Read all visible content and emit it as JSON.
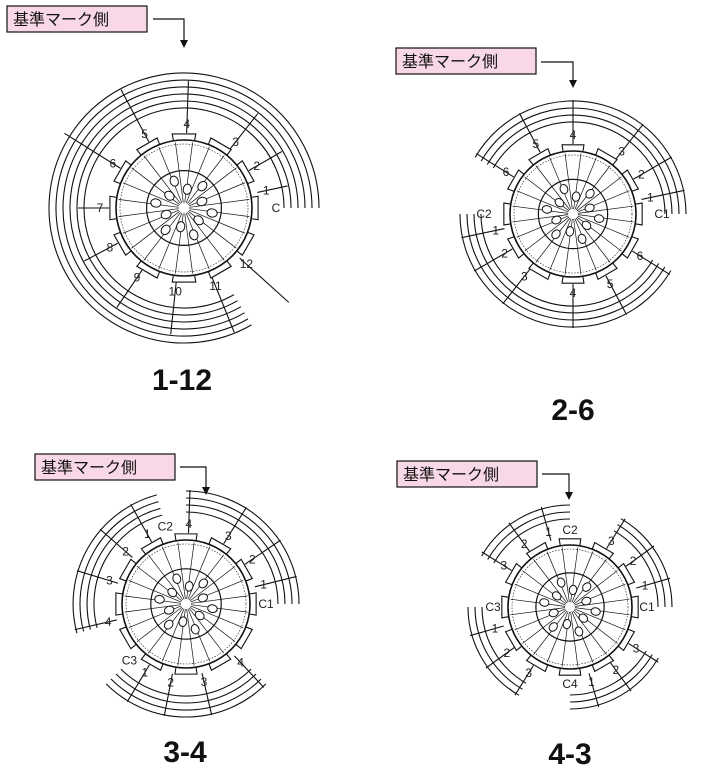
{
  "reference_label": "基準マーク側",
  "colors": {
    "reference_fill": "#f8d7e6",
    "line": "#111111"
  },
  "diagrams": [
    {
      "id": "d1",
      "caption": "1-12",
      "groups": [
        {
          "start": "C",
          "labels": [
            "1",
            "2",
            "3",
            "4",
            "5",
            "6",
            "7",
            "8",
            "9",
            "10",
            "11",
            "12"
          ]
        }
      ]
    },
    {
      "id": "d2",
      "caption": "2-6",
      "groups": [
        {
          "start": "C1",
          "labels": [
            "1",
            "2",
            "3",
            "4",
            "5",
            "6"
          ]
        },
        {
          "start": "C2",
          "labels": [
            "1",
            "2",
            "3",
            "4",
            "5",
            "6"
          ]
        }
      ]
    },
    {
      "id": "d3",
      "caption": "3-4",
      "groups": [
        {
          "start": "C1",
          "labels": [
            "1",
            "2",
            "3",
            "4"
          ]
        },
        {
          "start": "C2",
          "labels": [
            "1",
            "2",
            "3",
            "4"
          ]
        },
        {
          "start": "C3",
          "labels": [
            "1",
            "2",
            "3",
            "4"
          ]
        }
      ]
    },
    {
      "id": "d4",
      "caption": "4-3",
      "groups": [
        {
          "start": "C1",
          "labels": [
            "1",
            "2",
            "3"
          ]
        },
        {
          "start": "C2",
          "labels": [
            "1",
            "2",
            "3"
          ]
        },
        {
          "start": "C3",
          "labels": [
            "1",
            "2",
            "3"
          ]
        },
        {
          "start": "C4",
          "labels": [
            "1",
            "2",
            "3"
          ]
        }
      ]
    }
  ]
}
